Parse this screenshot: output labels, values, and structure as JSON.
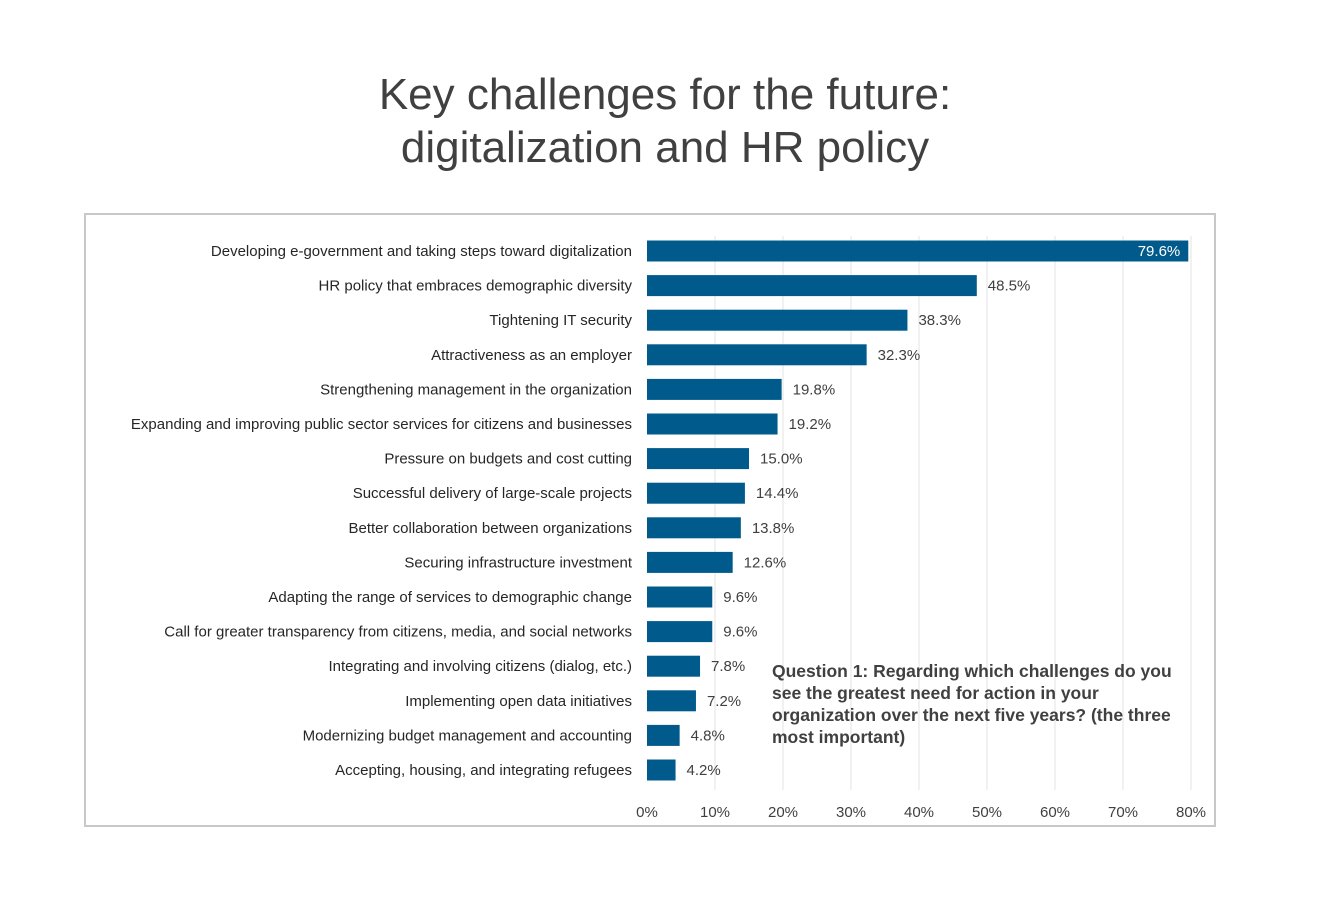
{
  "title": {
    "line1": "Key challenges for the future:",
    "line2": "digitalization and HR policy"
  },
  "annotation": "Question 1: Regarding which challenges do you see the greatest need for action in your organization over the next five years? (the three most important)",
  "colors": {
    "bar": "#005b8c",
    "grid": "#e3e3e3",
    "frame": "#c8c8c8",
    "title": "#404040"
  },
  "chart_data": {
    "type": "bar",
    "orientation": "horizontal",
    "title": "",
    "xlabel": "",
    "ylabel": "",
    "xlim": [
      0,
      80
    ],
    "grid": true,
    "value_suffix": "%",
    "x_ticks": [
      "0%",
      "10%",
      "20%",
      "30%",
      "40%",
      "50%",
      "60%",
      "70%",
      "80%"
    ],
    "categories": [
      "Developing e-government and taking steps toward digitalization",
      "HR policy that embraces demographic diversity",
      "Tightening IT security",
      "Attractiveness as an employer",
      "Strengthening management in the organization",
      "Expanding and improving public sector services for citizens and businesses",
      "Pressure on budgets and cost cutting",
      "Successful delivery of large-scale projects",
      "Better collaboration between organizations",
      "Securing infrastructure investment",
      "Adapting the range of services to demographic change",
      "Call for greater transparency from citizens, media, and social networks",
      "Integrating and involving citizens (dialog, etc.)",
      "Implementing open data initiatives",
      "Modernizing budget management and accounting",
      "Accepting, housing, and integrating refugees"
    ],
    "values": [
      79.6,
      48.5,
      38.3,
      32.3,
      19.8,
      19.2,
      15.0,
      14.4,
      13.8,
      12.6,
      9.6,
      9.6,
      7.8,
      7.2,
      4.8,
      4.2
    ],
    "value_labels": [
      "79.6%",
      "48.5%",
      "38.3%",
      "32.3%",
      "19.8%",
      "19.2%",
      "15.0%",
      "14.4%",
      "13.8%",
      "12.6%",
      "9.6%",
      "9.6%",
      "7.8%",
      "7.2%",
      "4.8%",
      "4.2%"
    ]
  }
}
